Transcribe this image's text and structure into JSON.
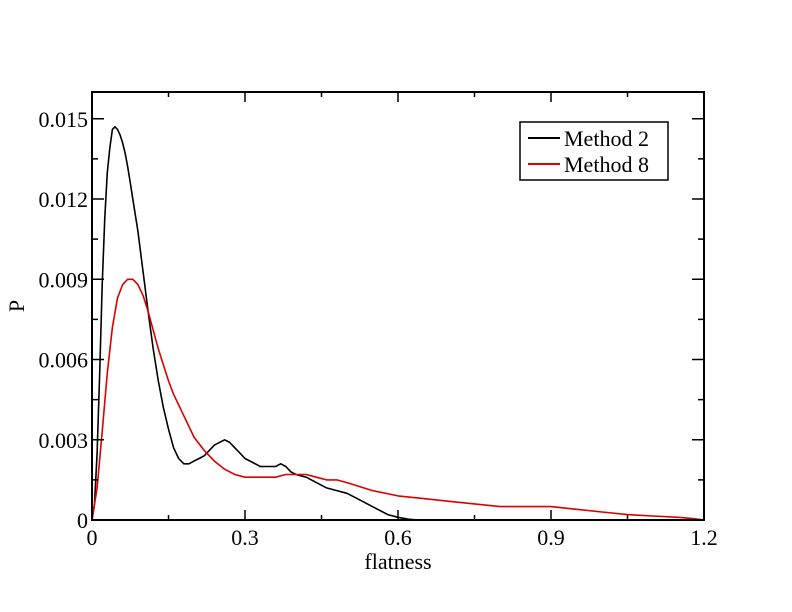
{
  "chart_data": {
    "type": "line",
    "xlabel": "flatness",
    "ylabel": "P",
    "xlim": [
      0,
      1.2
    ],
    "ylim": [
      0,
      0.016
    ],
    "x_ticks": [
      "0",
      "0.3",
      "0.6",
      "0.9",
      "1.2"
    ],
    "y_ticks": [
      "0",
      "0.003",
      "0.006",
      "0.009",
      "0.012",
      "0.015"
    ],
    "legend_position": "top-right",
    "grid": false,
    "series": [
      {
        "name": "Method 2",
        "color": "#000000",
        "x": [
          0,
          0.005,
          0.01,
          0.015,
          0.02,
          0.025,
          0.03,
          0.035,
          0.04,
          0.045,
          0.05,
          0.055,
          0.06,
          0.065,
          0.07,
          0.075,
          0.08,
          0.09,
          0.1,
          0.11,
          0.12,
          0.13,
          0.14,
          0.15,
          0.16,
          0.17,
          0.18,
          0.19,
          0.2,
          0.21,
          0.22,
          0.23,
          0.24,
          0.25,
          0.26,
          0.27,
          0.28,
          0.29,
          0.3,
          0.31,
          0.32,
          0.33,
          0.34,
          0.35,
          0.36,
          0.37,
          0.38,
          0.39,
          0.4,
          0.42,
          0.44,
          0.46,
          0.48,
          0.5,
          0.52,
          0.54,
          0.56,
          0.58,
          0.6,
          0.62,
          0.64
        ],
        "y": [
          0,
          0.0006,
          0.0025,
          0.0055,
          0.0088,
          0.0113,
          0.013,
          0.0139,
          0.0146,
          0.0147,
          0.0146,
          0.0144,
          0.0141,
          0.0137,
          0.0132,
          0.0126,
          0.012,
          0.0108,
          0.0093,
          0.0078,
          0.0064,
          0.0052,
          0.0042,
          0.0034,
          0.0027,
          0.0023,
          0.0021,
          0.0021,
          0.0022,
          0.0023,
          0.0024,
          0.0026,
          0.0028,
          0.0029,
          0.003,
          0.0029,
          0.0027,
          0.0025,
          0.0023,
          0.0022,
          0.0021,
          0.002,
          0.002,
          0.002,
          0.002,
          0.0021,
          0.002,
          0.0018,
          0.0017,
          0.0016,
          0.0014,
          0.0012,
          0.0011,
          0.001,
          0.0008,
          0.0006,
          0.0004,
          0.0002,
          0.0001,
          3e-05,
          0
        ]
      },
      {
        "name": "Method 8",
        "color": "#dd0000",
        "x": [
          0,
          0.01,
          0.02,
          0.03,
          0.04,
          0.05,
          0.06,
          0.07,
          0.08,
          0.09,
          0.1,
          0.11,
          0.12,
          0.13,
          0.14,
          0.15,
          0.16,
          0.17,
          0.18,
          0.19,
          0.2,
          0.22,
          0.24,
          0.26,
          0.28,
          0.3,
          0.32,
          0.34,
          0.36,
          0.38,
          0.4,
          0.42,
          0.44,
          0.46,
          0.48,
          0.5,
          0.55,
          0.6,
          0.65,
          0.7,
          0.75,
          0.8,
          0.85,
          0.9,
          0.95,
          1.0,
          1.05,
          1.1,
          1.15,
          1.18,
          1.2
        ],
        "y": [
          0,
          0.0012,
          0.0033,
          0.0055,
          0.0072,
          0.0083,
          0.0088,
          0.009,
          0.009,
          0.0088,
          0.0084,
          0.0078,
          0.0071,
          0.0064,
          0.0058,
          0.0052,
          0.0047,
          0.0043,
          0.0039,
          0.0035,
          0.0031,
          0.0026,
          0.0022,
          0.0019,
          0.0017,
          0.0016,
          0.0016,
          0.0016,
          0.0016,
          0.0017,
          0.0017,
          0.0017,
          0.0016,
          0.0015,
          0.0015,
          0.0014,
          0.0011,
          0.0009,
          0.0008,
          0.0007,
          0.0006,
          0.0005,
          0.0005,
          0.0005,
          0.0004,
          0.0003,
          0.0002,
          0.00015,
          0.0001,
          5e-05,
          0
        ]
      }
    ]
  }
}
